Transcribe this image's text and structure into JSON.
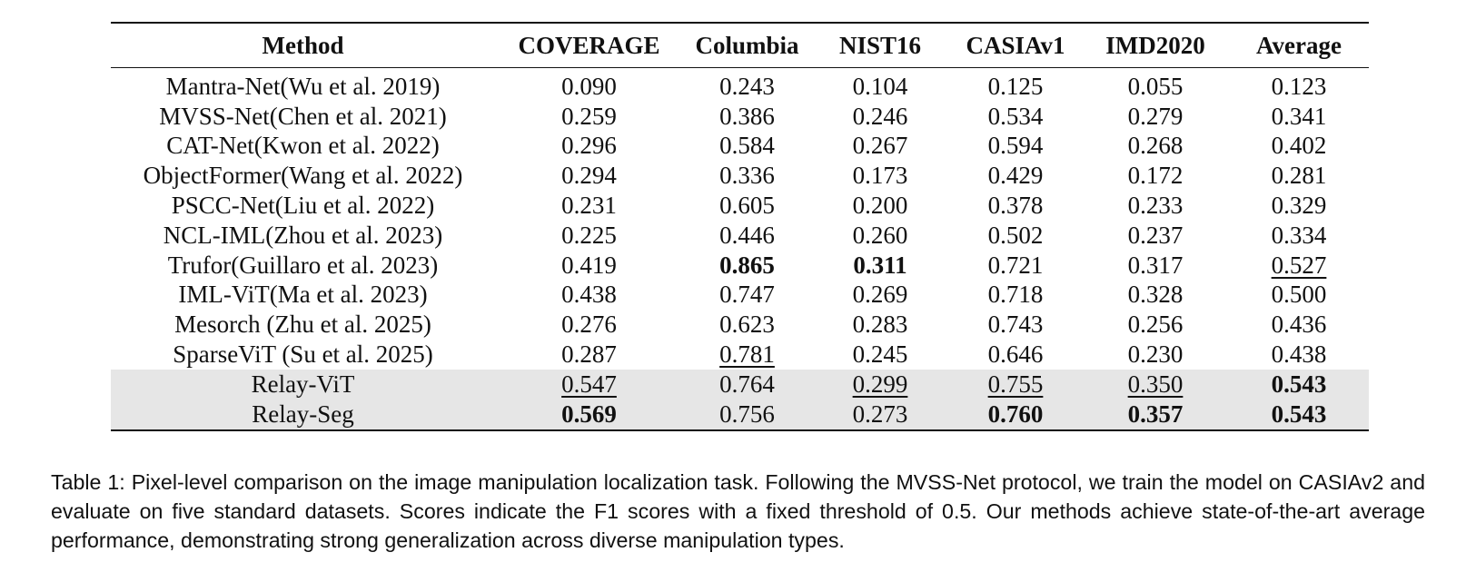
{
  "table": {
    "columns": [
      "Method",
      "COVERAGE",
      "Columbia",
      "NIST16",
      "CASIAv1",
      "IMD2020",
      "Average"
    ],
    "rows": [
      {
        "method": "Mantra-Net(Wu et al. 2019)",
        "values": [
          "0.090",
          "0.243",
          "0.104",
          "0.125",
          "0.055",
          "0.123"
        ],
        "bold": [],
        "underline": [],
        "shaded": false
      },
      {
        "method": "MVSS-Net(Chen et al. 2021)",
        "values": [
          "0.259",
          "0.386",
          "0.246",
          "0.534",
          "0.279",
          "0.341"
        ],
        "bold": [],
        "underline": [],
        "shaded": false
      },
      {
        "method": "CAT-Net(Kwon et al. 2022)",
        "values": [
          "0.296",
          "0.584",
          "0.267",
          "0.594",
          "0.268",
          "0.402"
        ],
        "bold": [],
        "underline": [],
        "shaded": false
      },
      {
        "method": "ObjectFormer(Wang et al. 2022)",
        "values": [
          "0.294",
          "0.336",
          "0.173",
          "0.429",
          "0.172",
          "0.281"
        ],
        "bold": [],
        "underline": [],
        "shaded": false
      },
      {
        "method": "PSCC-Net(Liu et al. 2022)",
        "values": [
          "0.231",
          "0.605",
          "0.200",
          "0.378",
          "0.233",
          "0.329"
        ],
        "bold": [],
        "underline": [],
        "shaded": false
      },
      {
        "method": "NCL-IML(Zhou et al. 2023)",
        "values": [
          "0.225",
          "0.446",
          "0.260",
          "0.502",
          "0.237",
          "0.334"
        ],
        "bold": [],
        "underline": [],
        "shaded": false
      },
      {
        "method": "Trufor(Guillaro et al. 2023)",
        "values": [
          "0.419",
          "0.865",
          "0.311",
          "0.721",
          "0.317",
          "0.527"
        ],
        "bold": [
          1,
          2
        ],
        "underline": [
          5
        ],
        "shaded": false
      },
      {
        "method": "IML-ViT(Ma et al. 2023)",
        "values": [
          "0.438",
          "0.747",
          "0.269",
          "0.718",
          "0.328",
          "0.500"
        ],
        "bold": [],
        "underline": [],
        "shaded": false
      },
      {
        "method": "Mesorch (Zhu et al. 2025)",
        "values": [
          "0.276",
          "0.623",
          "0.283",
          "0.743",
          "0.256",
          "0.436"
        ],
        "bold": [],
        "underline": [],
        "shaded": false
      },
      {
        "method": "SparseViT (Su et al. 2025)",
        "values": [
          "0.287",
          "0.781",
          "0.245",
          "0.646",
          "0.230",
          "0.438"
        ],
        "bold": [],
        "underline": [
          1
        ],
        "shaded": false
      },
      {
        "method": "Relay-ViT",
        "values": [
          "0.547",
          "0.764",
          "0.299",
          "0.755",
          "0.350",
          "0.543"
        ],
        "bold": [
          5
        ],
        "underline": [
          0,
          2,
          3,
          4
        ],
        "shaded": true
      },
      {
        "method": "Relay-Seg",
        "values": [
          "0.569",
          "0.756",
          "0.273",
          "0.760",
          "0.357",
          "0.543"
        ],
        "bold": [
          0,
          3,
          4,
          5
        ],
        "underline": [],
        "shaded": true
      }
    ]
  },
  "caption": "Table 1: Pixel-level comparison on the image manipulation localization task. Following the MVSS-Net protocol, we train the model on CASIAv2 and evaluate on five standard datasets. Scores indicate the F1 scores with a fixed threshold of 0.5. Our methods achieve state-of-the-art average performance, demonstrating strong generalization across diverse manipulation types.",
  "colors": {
    "shaded_row": "#e6e6e6",
    "text": "#111111"
  }
}
